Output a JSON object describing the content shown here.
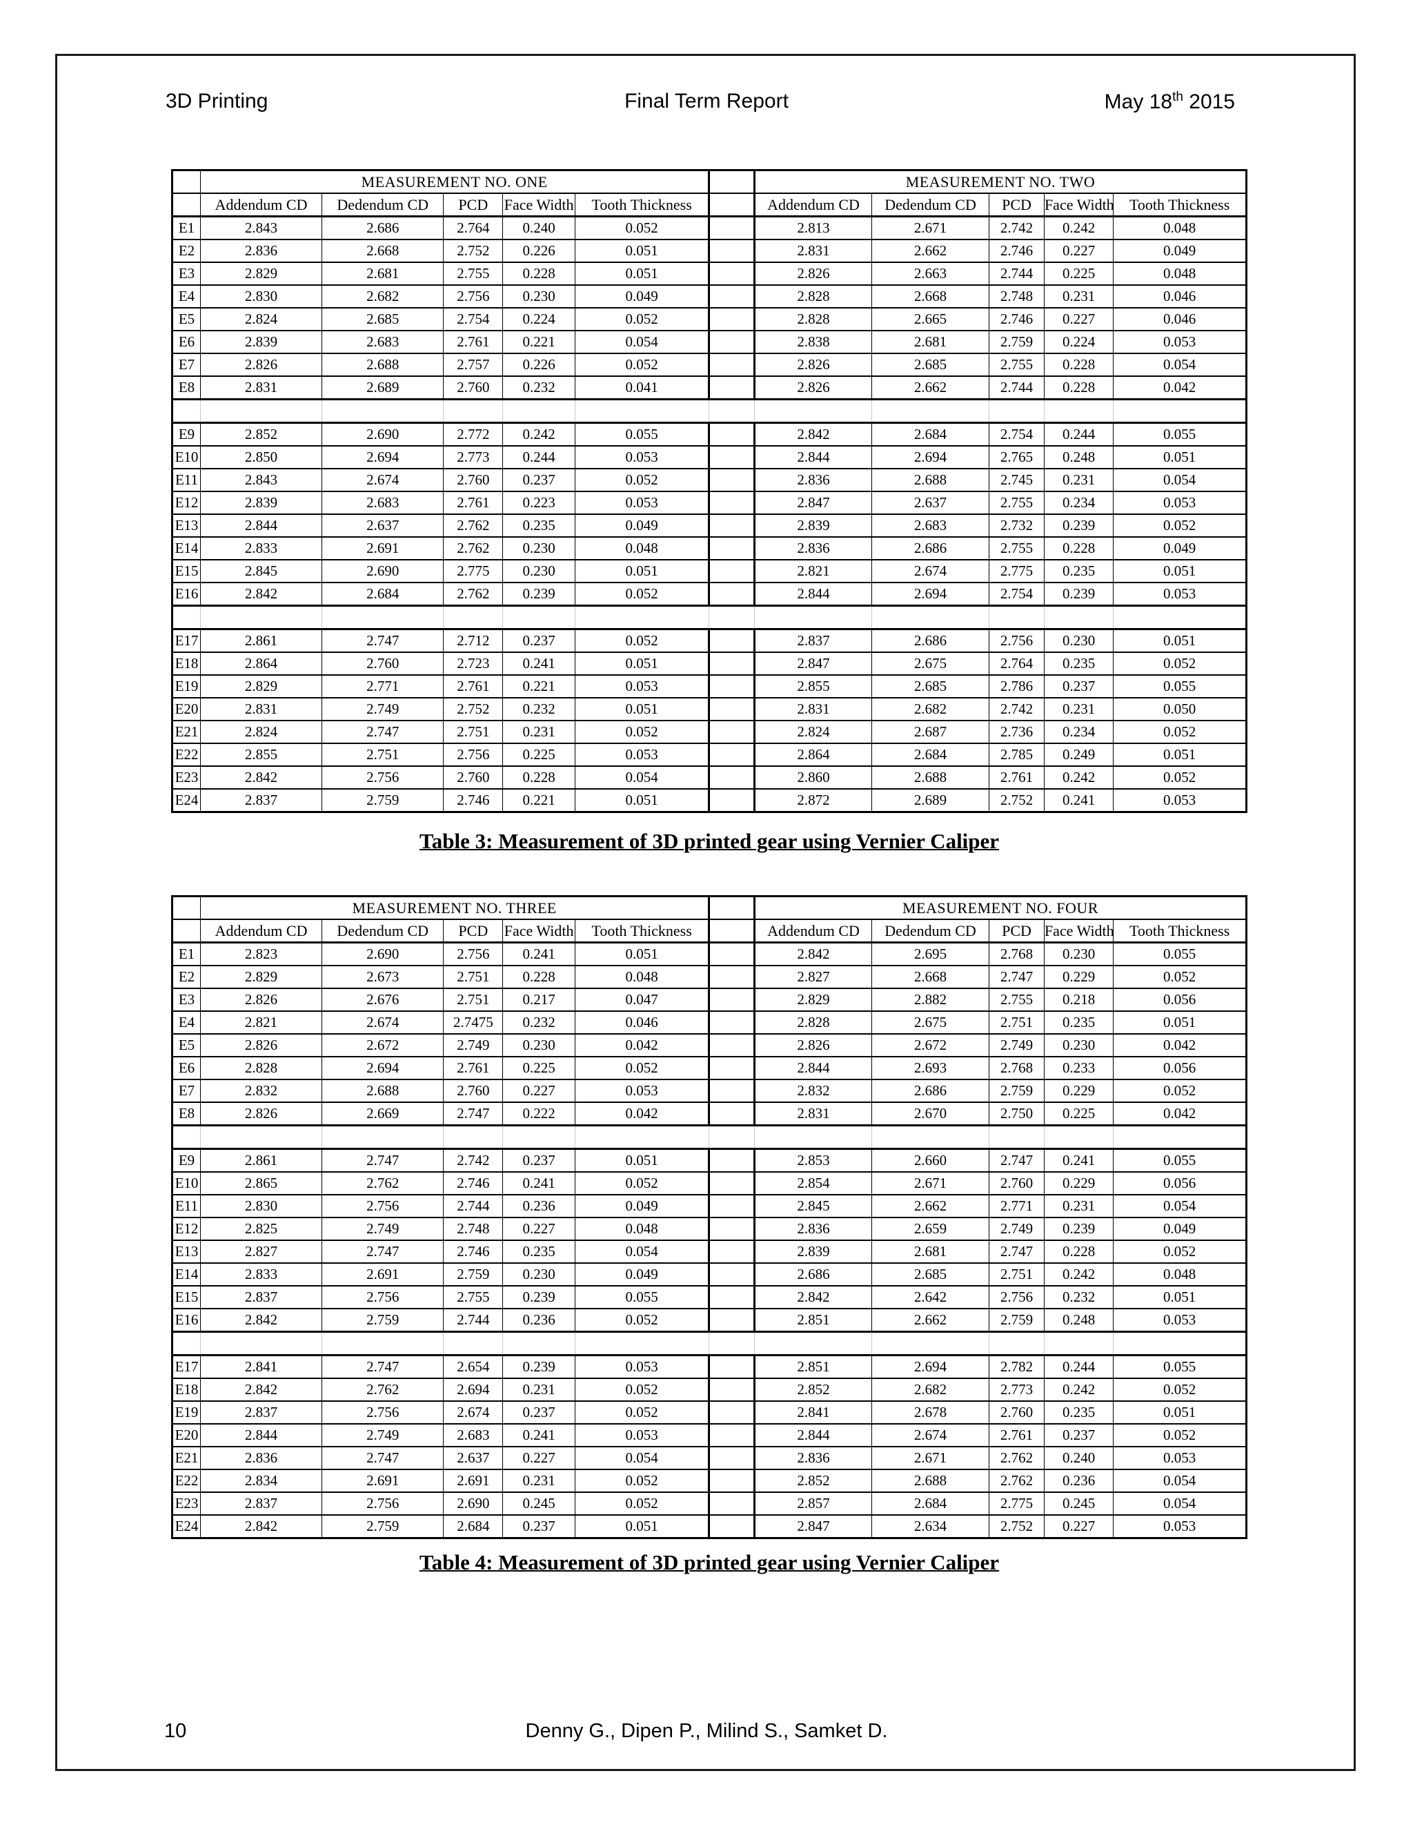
{
  "header": {
    "left": "3D Printing",
    "center": "Final Term Report",
    "date_main": "May 18",
    "date_sup": "th",
    "date_year": " 2015"
  },
  "columns": [
    "Addendum CD",
    "Dedendum CD",
    "PCD",
    "Face Width",
    "Tooth Thickness"
  ],
  "row_labels": [
    "E1",
    "E2",
    "E3",
    "E4",
    "E5",
    "E6",
    "E7",
    "E8",
    "E9",
    "E10",
    "E11",
    "E12",
    "E13",
    "E14",
    "E15",
    "E16",
    "E17",
    "E18",
    "E19",
    "E20",
    "E21",
    "E22",
    "E23",
    "E24"
  ],
  "tables": [
    {
      "caption": "Table 3: Measurement of 3D printed gear using Vernier Caliper",
      "left_title": "MEASUREMENT NO. ONE",
      "right_title": "MEASUREMENT NO. TWO",
      "left_rows": [
        [
          "2.843",
          "2.686",
          "2.764",
          "0.240",
          "0.052"
        ],
        [
          "2.836",
          "2.668",
          "2.752",
          "0.226",
          "0.051"
        ],
        [
          "2.829",
          "2.681",
          "2.755",
          "0.228",
          "0.051"
        ],
        [
          "2.830",
          "2.682",
          "2.756",
          "0.230",
          "0.049"
        ],
        [
          "2.824",
          "2.685",
          "2.754",
          "0.224",
          "0.052"
        ],
        [
          "2.839",
          "2.683",
          "2.761",
          "0.221",
          "0.054"
        ],
        [
          "2.826",
          "2.688",
          "2.757",
          "0.226",
          "0.052"
        ],
        [
          "2.831",
          "2.689",
          "2.760",
          "0.232",
          "0.041"
        ],
        [
          "2.852",
          "2.690",
          "2.772",
          "0.242",
          "0.055"
        ],
        [
          "2.850",
          "2.694",
          "2.773",
          "0.244",
          "0.053"
        ],
        [
          "2.843",
          "2.674",
          "2.760",
          "0.237",
          "0.052"
        ],
        [
          "2.839",
          "2.683",
          "2.761",
          "0.223",
          "0.053"
        ],
        [
          "2.844",
          "2.637",
          "2.762",
          "0.235",
          "0.049"
        ],
        [
          "2.833",
          "2.691",
          "2.762",
          "0.230",
          "0.048"
        ],
        [
          "2.845",
          "2.690",
          "2.775",
          "0.230",
          "0.051"
        ],
        [
          "2.842",
          "2.684",
          "2.762",
          "0.239",
          "0.052"
        ],
        [
          "2.861",
          "2.747",
          "2.712",
          "0.237",
          "0.052"
        ],
        [
          "2.864",
          "2.760",
          "2.723",
          "0.241",
          "0.051"
        ],
        [
          "2.829",
          "2.771",
          "2.761",
          "0.221",
          "0.053"
        ],
        [
          "2.831",
          "2.749",
          "2.752",
          "0.232",
          "0.051"
        ],
        [
          "2.824",
          "2.747",
          "2.751",
          "0.231",
          "0.052"
        ],
        [
          "2.855",
          "2.751",
          "2.756",
          "0.225",
          "0.053"
        ],
        [
          "2.842",
          "2.756",
          "2.760",
          "0.228",
          "0.054"
        ],
        [
          "2.837",
          "2.759",
          "2.746",
          "0.221",
          "0.051"
        ]
      ],
      "right_rows": [
        [
          "2.813",
          "2.671",
          "2.742",
          "0.242",
          "0.048"
        ],
        [
          "2.831",
          "2.662",
          "2.746",
          "0.227",
          "0.049"
        ],
        [
          "2.826",
          "2.663",
          "2.744",
          "0.225",
          "0.048"
        ],
        [
          "2.828",
          "2.668",
          "2.748",
          "0.231",
          "0.046"
        ],
        [
          "2.828",
          "2.665",
          "2.746",
          "0.227",
          "0.046"
        ],
        [
          "2.838",
          "2.681",
          "2.759",
          "0.224",
          "0.053"
        ],
        [
          "2.826",
          "2.685",
          "2.755",
          "0.228",
          "0.054"
        ],
        [
          "2.826",
          "2.662",
          "2.744",
          "0.228",
          "0.042"
        ],
        [
          "2.842",
          "2.684",
          "2.754",
          "0.244",
          "0.055"
        ],
        [
          "2.844",
          "2.694",
          "2.765",
          "0.248",
          "0.051"
        ],
        [
          "2.836",
          "2.688",
          "2.745",
          "0.231",
          "0.054"
        ],
        [
          "2.847",
          "2.637",
          "2.755",
          "0.234",
          "0.053"
        ],
        [
          "2.839",
          "2.683",
          "2.732",
          "0.239",
          "0.052"
        ],
        [
          "2.836",
          "2.686",
          "2.755",
          "0.228",
          "0.049"
        ],
        [
          "2.821",
          "2.674",
          "2.775",
          "0.235",
          "0.051"
        ],
        [
          "2.844",
          "2.694",
          "2.754",
          "0.239",
          "0.053"
        ],
        [
          "2.837",
          "2.686",
          "2.756",
          "0.230",
          "0.051"
        ],
        [
          "2.847",
          "2.675",
          "2.764",
          "0.235",
          "0.052"
        ],
        [
          "2.855",
          "2.685",
          "2.786",
          "0.237",
          "0.055"
        ],
        [
          "2.831",
          "2.682",
          "2.742",
          "0.231",
          "0.050"
        ],
        [
          "2.824",
          "2.687",
          "2.736",
          "0.234",
          "0.052"
        ],
        [
          "2.864",
          "2.684",
          "2.785",
          "0.249",
          "0.051"
        ],
        [
          "2.860",
          "2.688",
          "2.761",
          "0.242",
          "0.052"
        ],
        [
          "2.872",
          "2.689",
          "2.752",
          "0.241",
          "0.053"
        ]
      ]
    },
    {
      "caption": "Table 4: Measurement of 3D printed gear using Vernier Caliper",
      "left_title": "MEASUREMENT NO. THREE",
      "right_title": "MEASUREMENT NO. FOUR",
      "left_rows": [
        [
          "2.823",
          "2.690",
          "2.756",
          "0.241",
          "0.051"
        ],
        [
          "2.829",
          "2.673",
          "2.751",
          "0.228",
          "0.048"
        ],
        [
          "2.826",
          "2.676",
          "2.751",
          "0.217",
          "0.047"
        ],
        [
          "2.821",
          "2.674",
          "2.7475",
          "0.232",
          "0.046"
        ],
        [
          "2.826",
          "2.672",
          "2.749",
          "0.230",
          "0.042"
        ],
        [
          "2.828",
          "2.694",
          "2.761",
          "0.225",
          "0.052"
        ],
        [
          "2.832",
          "2.688",
          "2.760",
          "0.227",
          "0.053"
        ],
        [
          "2.826",
          "2.669",
          "2.747",
          "0.222",
          "0.042"
        ],
        [
          "2.861",
          "2.747",
          "2.742",
          "0.237",
          "0.051"
        ],
        [
          "2.865",
          "2.762",
          "2.746",
          "0.241",
          "0.052"
        ],
        [
          "2.830",
          "2.756",
          "2.744",
          "0.236",
          "0.049"
        ],
        [
          "2.825",
          "2.749",
          "2.748",
          "0.227",
          "0.048"
        ],
        [
          "2.827",
          "2.747",
          "2.746",
          "0.235",
          "0.054"
        ],
        [
          "2.833",
          "2.691",
          "2.759",
          "0.230",
          "0.049"
        ],
        [
          "2.837",
          "2.756",
          "2.755",
          "0.239",
          "0.055"
        ],
        [
          "2.842",
          "2.759",
          "2.744",
          "0.236",
          "0.052"
        ],
        [
          "2.841",
          "2.747",
          "2.654",
          "0.239",
          "0.053"
        ],
        [
          "2.842",
          "2.762",
          "2.694",
          "0.231",
          "0.052"
        ],
        [
          "2.837",
          "2.756",
          "2.674",
          "0.237",
          "0.052"
        ],
        [
          "2.844",
          "2.749",
          "2.683",
          "0.241",
          "0.053"
        ],
        [
          "2.836",
          "2.747",
          "2.637",
          "0.227",
          "0.054"
        ],
        [
          "2.834",
          "2.691",
          "2.691",
          "0.231",
          "0.052"
        ],
        [
          "2.837",
          "2.756",
          "2.690",
          "0.245",
          "0.052"
        ],
        [
          "2.842",
          "2.759",
          "2.684",
          "0.237",
          "0.051"
        ]
      ],
      "right_rows": [
        [
          "2.842",
          "2.695",
          "2.768",
          "0.230",
          "0.055"
        ],
        [
          "2.827",
          "2.668",
          "2.747",
          "0.229",
          "0.052"
        ],
        [
          "2.829",
          "2.882",
          "2.755",
          "0.218",
          "0.056"
        ],
        [
          "2.828",
          "2.675",
          "2.751",
          "0.235",
          "0.051"
        ],
        [
          "2.826",
          "2.672",
          "2.749",
          "0.230",
          "0.042"
        ],
        [
          "2.844",
          "2.693",
          "2.768",
          "0.233",
          "0.056"
        ],
        [
          "2.832",
          "2.686",
          "2.759",
          "0.229",
          "0.052"
        ],
        [
          "2.831",
          "2.670",
          "2.750",
          "0.225",
          "0.042"
        ],
        [
          "2.853",
          "2.660",
          "2.747",
          "0.241",
          "0.055"
        ],
        [
          "2.854",
          "2.671",
          "2.760",
          "0.229",
          "0.056"
        ],
        [
          "2.845",
          "2.662",
          "2.771",
          "0.231",
          "0.054"
        ],
        [
          "2.836",
          "2.659",
          "2.749",
          "0.239",
          "0.049"
        ],
        [
          "2.839",
          "2.681",
          "2.747",
          "0.228",
          "0.052"
        ],
        [
          "2.686",
          "2.685",
          "2.751",
          "0.242",
          "0.048"
        ],
        [
          "2.842",
          "2.642",
          "2.756",
          "0.232",
          "0.051"
        ],
        [
          "2.851",
          "2.662",
          "2.759",
          "0.248",
          "0.053"
        ],
        [
          "2.851",
          "2.694",
          "2.782",
          "0.244",
          "0.055"
        ],
        [
          "2.852",
          "2.682",
          "2.773",
          "0.242",
          "0.052"
        ],
        [
          "2.841",
          "2.678",
          "2.760",
          "0.235",
          "0.051"
        ],
        [
          "2.844",
          "2.674",
          "2.761",
          "0.237",
          "0.052"
        ],
        [
          "2.836",
          "2.671",
          "2.762",
          "0.240",
          "0.053"
        ],
        [
          "2.852",
          "2.688",
          "2.762",
          "0.236",
          "0.054"
        ],
        [
          "2.857",
          "2.684",
          "2.775",
          "0.245",
          "0.054"
        ],
        [
          "2.847",
          "2.634",
          "2.752",
          "0.227",
          "0.053"
        ]
      ]
    }
  ],
  "footer": {
    "page_number": "10",
    "authors": "Denny G., Dipen P., Milind S., Samket D."
  }
}
